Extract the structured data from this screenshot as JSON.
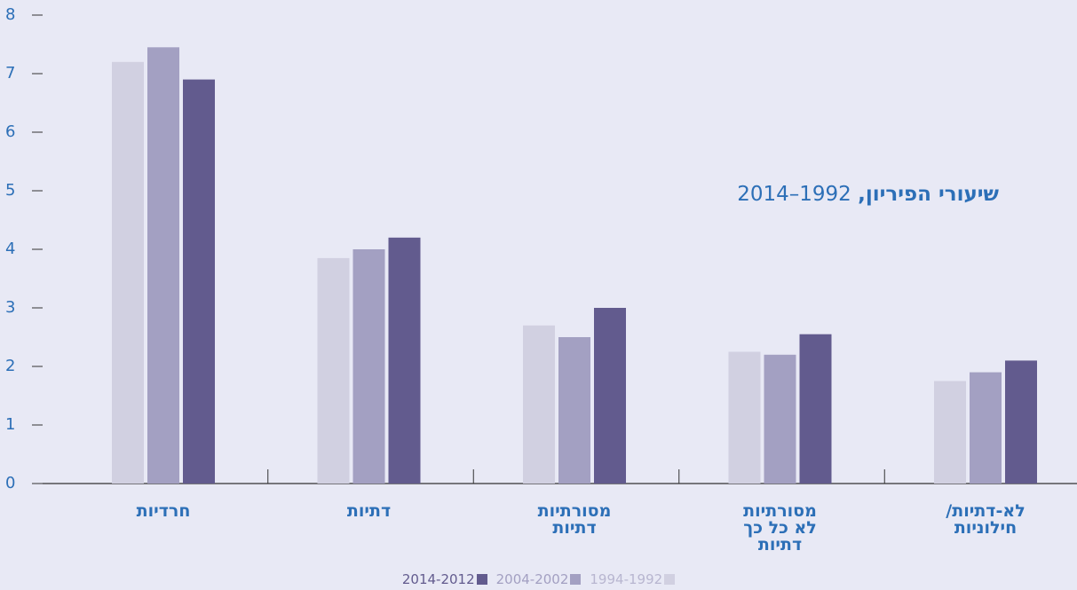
{
  "chart_data": {
    "type": "bar",
    "title": "שיעורי הפיריון,",
    "subtitle": "1992–2014",
    "categories": [
      "חרדיות",
      "דתיות",
      "מסורתיות\nדתיות",
      "מסורתיות\nלא כל כך\nדתיות",
      "לא-דתיות/\nחילוניות"
    ],
    "series": [
      {
        "name": "1994-1992",
        "color": "#d1d0e1",
        "values": [
          7.2,
          3.85,
          2.7,
          2.25,
          1.75
        ]
      },
      {
        "name": "2004-2002",
        "color": "#a3a0c2",
        "values": [
          7.45,
          4.0,
          2.5,
          2.2,
          1.9
        ]
      },
      {
        "name": "2014-2012",
        "color": "#625b8e",
        "values": [
          6.9,
          4.2,
          3.0,
          2.55,
          2.1
        ]
      }
    ],
    "ylim": [
      0,
      8
    ],
    "yticks": [
      0,
      1,
      2,
      3,
      4,
      5,
      6,
      7,
      8
    ],
    "grid": false
  }
}
